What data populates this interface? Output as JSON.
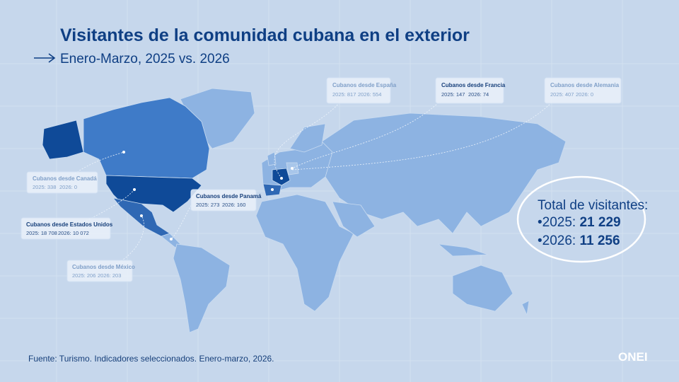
{
  "header": {
    "title": "Visitantes de la comunidad cubana en el exterior",
    "subtitle": "Enero-Marzo, 2025 vs. 2026"
  },
  "callouts": [
    {
      "title": "Cubanos desde España",
      "y2025": "2025: 817",
      "y2026": "2026: 554"
    },
    {
      "title": "Cubanos desde Francia",
      "y2025": "2025: 147",
      "y2026": "2026: 74"
    },
    {
      "title": "Cubanos desde Alemania",
      "y2025": "2025: 407",
      "y2026": "2026: 0"
    },
    {
      "title": "Cubanos desde Canadá",
      "y2025": "2025: 338",
      "y2026": "2026: 0"
    },
    {
      "title": "Cubanos desde Estados Unidos",
      "y2025": "2025: 18 708",
      "y2026": "2026: 10 072"
    },
    {
      "title": "Cubanos desde México",
      "y2025": "2025: 206",
      "y2026": "2026: 203"
    },
    {
      "title": "Cubanos desde Panamá",
      "y2025": "2025: 273",
      "y2026": "2026: 160"
    }
  ],
  "total": {
    "label": "Total de visitantes:",
    "rows": [
      {
        "year": "•2025:",
        "value": "21 229"
      },
      {
        "year": "•2026:",
        "value": "11 256"
      }
    ]
  },
  "source": "Fuente: Turismo. Indicadores seleccionados. Enero-marzo, 2026.",
  "logo": "ONEI"
}
